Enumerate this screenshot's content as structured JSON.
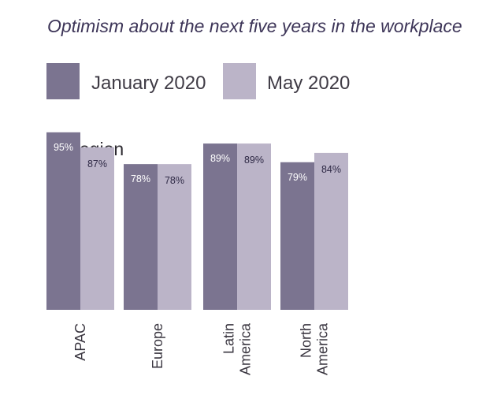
{
  "title": "Optimism about the next five years in the workplace",
  "subtitle": "By region",
  "colors": {
    "january": "#7b7490",
    "may": "#bbb4c8",
    "title": "#3d3558",
    "label_dark": "#2e2945",
    "label_light": "#ffffff"
  },
  "legend": [
    {
      "label": "January 2020",
      "color": "#7b7490"
    },
    {
      "label": "May 2020",
      "color": "#bbb4c8"
    }
  ],
  "chart_data": {
    "type": "bar",
    "title": "Optimism about the next five years in the workplace",
    "subtitle": "By region",
    "categories": [
      {
        "lines": [
          "APAC"
        ]
      },
      {
        "lines": [
          "Europe"
        ]
      },
      {
        "lines": [
          "Latin",
          "America"
        ]
      },
      {
        "lines": [
          "North",
          "America"
        ]
      }
    ],
    "series": [
      {
        "name": "January 2020",
        "values": [
          95,
          78,
          89,
          79
        ]
      },
      {
        "name": "May 2020",
        "values": [
          87,
          78,
          89,
          84
        ]
      }
    ],
    "value_suffix": "%",
    "ylim": [
      0,
      100
    ],
    "legend_position": "top-left",
    "grid": false
  }
}
